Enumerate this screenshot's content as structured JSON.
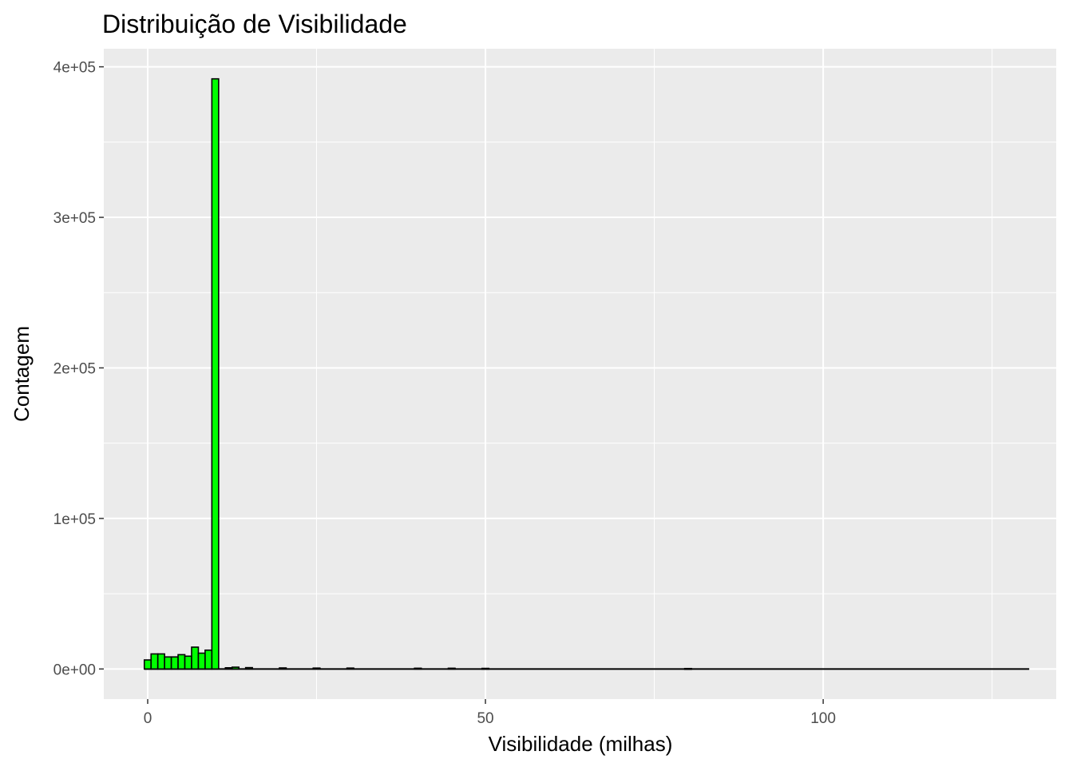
{
  "chart_data": {
    "type": "bar",
    "title": "Distribuição de Visibilidade",
    "xlabel": "Visibilidade (milhas)",
    "ylabel": "Contagem",
    "xlim": [
      -6.5,
      134.5
    ],
    "ylim": [
      -20000,
      412000
    ],
    "x_ticks": [
      {
        "value": 0,
        "label": "0"
      },
      {
        "value": 50,
        "label": "50"
      },
      {
        "value": 100,
        "label": "100"
      }
    ],
    "x_minor_ticks": [
      25,
      75,
      125
    ],
    "y_ticks": [
      {
        "value": 0,
        "label": "0e+00"
      },
      {
        "value": 100000,
        "label": "1e+05"
      },
      {
        "value": 200000,
        "label": "2e+05"
      },
      {
        "value": 300000,
        "label": "3e+05"
      },
      {
        "value": 400000,
        "label": "4e+05"
      }
    ],
    "y_minor_ticks": [
      50000,
      150000,
      250000,
      350000
    ],
    "grid": true,
    "bar_fill": "#00ff00",
    "bar_stroke": "#000000",
    "panel_background": "#ebebeb",
    "grid_color": "#ffffff",
    "bin_width": 1,
    "series": [
      {
        "bins": [
          {
            "x": 0,
            "count": 6000
          },
          {
            "x": 1,
            "count": 10000
          },
          {
            "x": 2,
            "count": 10000
          },
          {
            "x": 3,
            "count": 8000
          },
          {
            "x": 4,
            "count": 8000
          },
          {
            "x": 5,
            "count": 9500
          },
          {
            "x": 6,
            "count": 8500
          },
          {
            "x": 7,
            "count": 14500
          },
          {
            "x": 8,
            "count": 10500
          },
          {
            "x": 9,
            "count": 12500
          },
          {
            "x": 10,
            "count": 392000
          },
          {
            "x": 12,
            "count": 800
          },
          {
            "x": 13,
            "count": 1200
          },
          {
            "x": 15,
            "count": 900
          },
          {
            "x": 20,
            "count": 700
          },
          {
            "x": 25,
            "count": 600
          },
          {
            "x": 30,
            "count": 600
          },
          {
            "x": 40,
            "count": 500
          },
          {
            "x": 45,
            "count": 500
          },
          {
            "x": 50,
            "count": 400
          },
          {
            "x": 80,
            "count": 300
          },
          {
            "x": 130,
            "count": 0
          }
        ]
      }
    ]
  }
}
